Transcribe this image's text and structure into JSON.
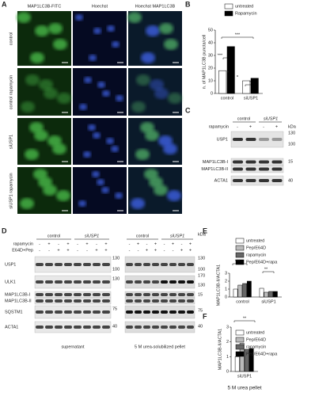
{
  "panel_a": {
    "label": "A",
    "columns": [
      "MAP1LC3B-FITC",
      "Hoechst",
      "Hoechst MAP1LC3B"
    ],
    "rows": [
      "control",
      "control rapamycin",
      "siUSP1",
      "siUSP1 rapamycin"
    ]
  },
  "panel_c": {
    "label": "C",
    "groups": [
      "control",
      "siUSP1"
    ],
    "treatment": "rapamycin",
    "signs": [
      "-",
      "+",
      "-",
      "+"
    ],
    "unit": "kDa",
    "bands": [
      "USP1",
      "MAP1LC3B-I",
      "MAP1LC3B-II",
      "ACTA1"
    ],
    "markers": [
      "130",
      "100",
      "15",
      "40"
    ]
  },
  "panel_d": {
    "label": "D",
    "groups": [
      "control",
      "siUSP1"
    ],
    "treatments": [
      "rapamycin",
      "E64D+Pep"
    ],
    "signs": [
      [
        "-",
        "+",
        "-",
        "+",
        "-",
        "+",
        "-",
        "+"
      ],
      [
        "-",
        "-",
        "+",
        "+",
        "-",
        "-",
        "+",
        "+"
      ]
    ],
    "unit": "kDa",
    "bands": [
      "USP1",
      "ULK1",
      "MAP1LC3B-I",
      "MAP1LC3B-II",
      "SQSTM1",
      "ACTA1"
    ],
    "markers_left": [
      "130",
      "100",
      "130",
      "75",
      "40"
    ],
    "markers_right": [
      "130",
      "100",
      "170",
      "130",
      "15",
      "75",
      "40"
    ],
    "fractions": [
      "supernatant",
      "5 M urea-solubilized pellet"
    ]
  },
  "chart_data": [
    {
      "label": "B",
      "type": "bar",
      "ylabel": "n. of MAP1LC3B puncta/cell",
      "categories": [
        "control",
        "siUSP1"
      ],
      "series": [
        {
          "name": "untreated",
          "color": "#ffffff",
          "values": [
            18,
            10
          ]
        },
        {
          "name": "Rapamycin",
          "color": "#000000",
          "values": [
            37,
            12
          ]
        }
      ],
      "ylim": [
        0,
        50
      ],
      "yticks": [
        0,
        10,
        20,
        30,
        40,
        50
      ],
      "annotations": [
        "***",
        "*",
        "***",
        "*"
      ]
    },
    {
      "label": "E",
      "type": "bar",
      "ylabel": "MAP1LC3B-II/ACTA1",
      "categories": [
        "control",
        "siUSP1"
      ],
      "series": [
        {
          "name": "untreated",
          "color": "#ffffff",
          "values": [
            1,
            1.1
          ]
        },
        {
          "name": "Pep/E64D",
          "color": "#bbbbbb",
          "values": [
            1.5,
            0.6
          ]
        },
        {
          "name": "rapamycin",
          "color": "#666666",
          "values": [
            1.7,
            0.7
          ]
        },
        {
          "name": "Pep/E64D+rapa",
          "color": "#000000",
          "values": [
            2,
            0.7
          ]
        }
      ],
      "ylim": [
        0,
        3
      ],
      "yticks": [
        0,
        1,
        2,
        3
      ],
      "annotations": [
        "***",
        "**"
      ]
    },
    {
      "label": "F",
      "type": "bar",
      "ylabel": "MAP1LC3B-II/ACTA1",
      "xlabel": "5 M urea pellet",
      "categories": [
        "siUSP1"
      ],
      "series": [
        {
          "name": "untreated",
          "color": "#ffffff",
          "values": [
            1
          ]
        },
        {
          "name": "Pep/E64D",
          "color": "#bbbbbb",
          "values": [
            1.9
          ]
        },
        {
          "name": "rapamycin",
          "color": "#666666",
          "values": [
            1.5
          ]
        },
        {
          "name": "Pep/E64D+rapa",
          "color": "#000000",
          "values": [
            1.55
          ]
        }
      ],
      "ylim": [
        0,
        3
      ],
      "yticks": [
        0,
        1,
        2,
        3
      ],
      "annotations": [
        "**"
      ]
    }
  ]
}
